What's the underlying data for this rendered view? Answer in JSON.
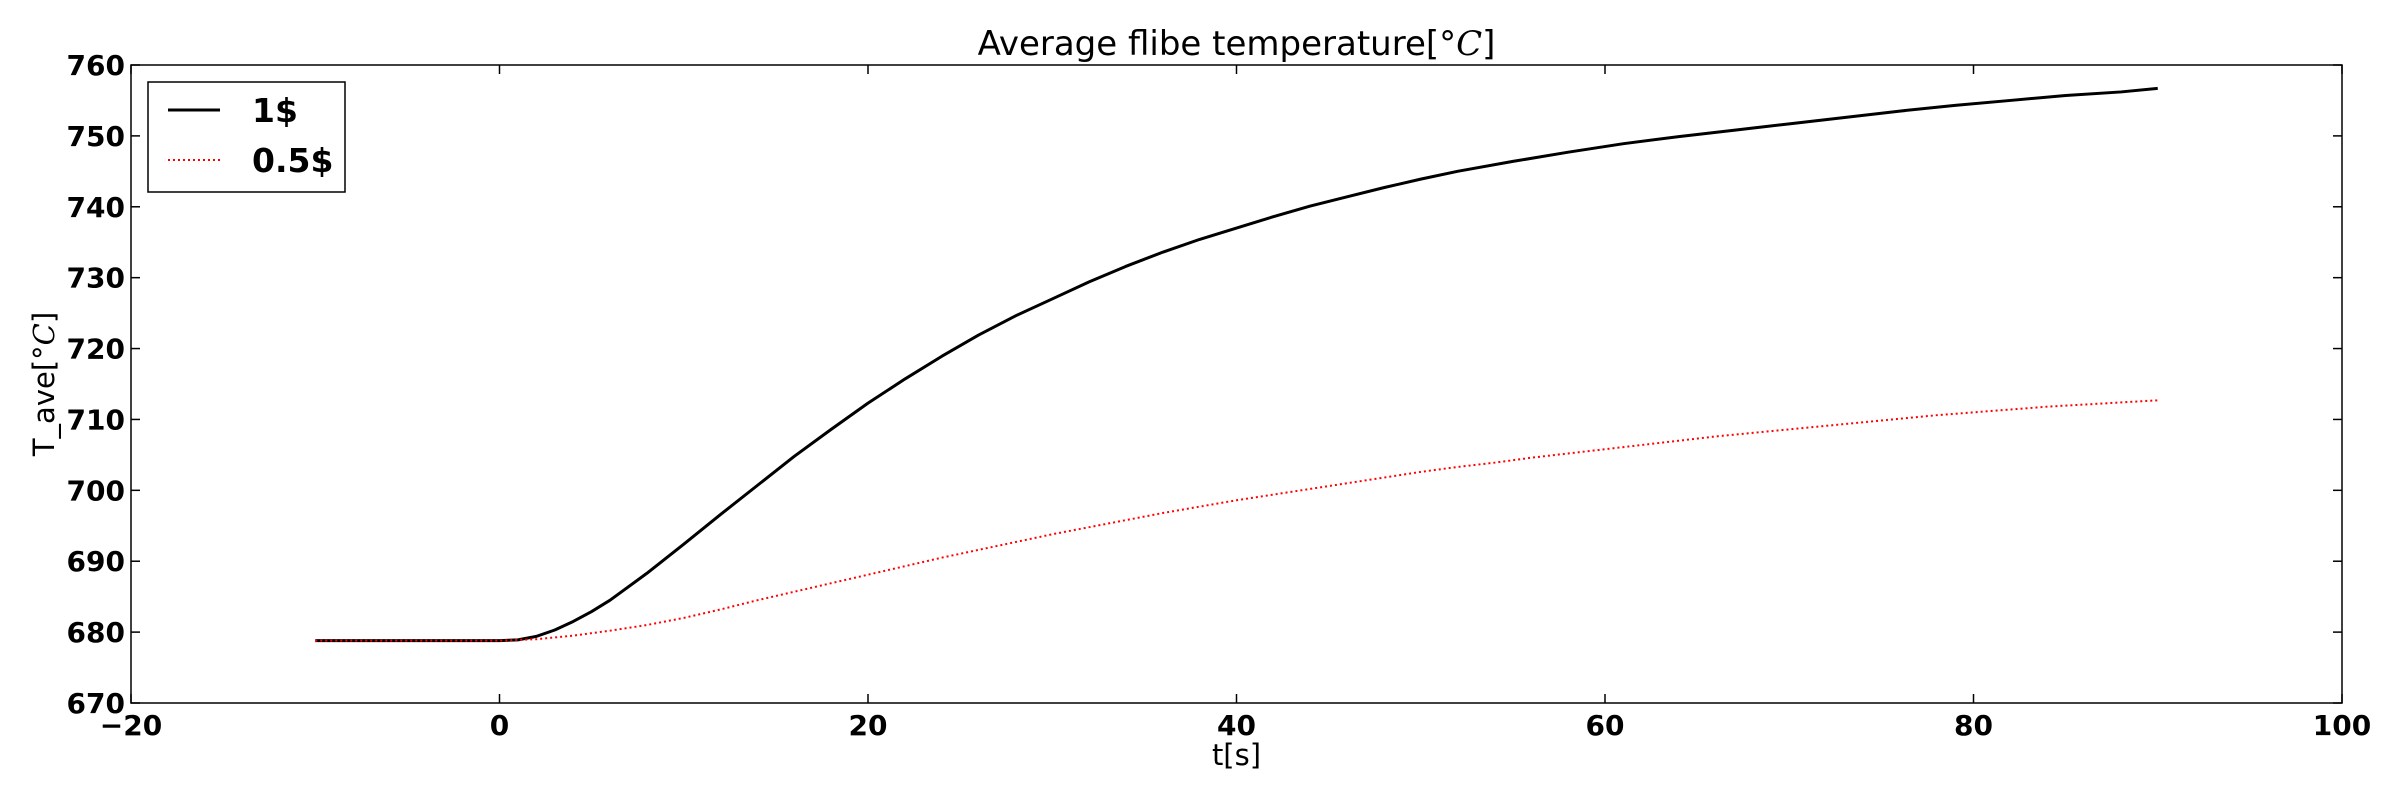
{
  "chart_data": {
    "type": "line",
    "title": "Average flibe temperature[°C]",
    "title_parts": {
      "prefix": "Average flibe temperature[",
      "degree": "°",
      "unit": "C",
      "suffix": "]"
    },
    "xlabel": "t[s]",
    "ylabel": "T_ave[°C]",
    "ylabel_parts": {
      "prefix": "T_ave[",
      "degree": "°",
      "unit": "C",
      "suffix": "]"
    },
    "xlim": [
      -20,
      100
    ],
    "ylim": [
      670,
      760
    ],
    "xticks": [
      -20,
      0,
      20,
      40,
      60,
      80,
      100
    ],
    "yticks": [
      670,
      680,
      690,
      700,
      710,
      720,
      730,
      740,
      750,
      760
    ],
    "xtick_labels": [
      "−20",
      "0",
      "20",
      "40",
      "60",
      "80",
      "100"
    ],
    "ytick_labels": [
      "670",
      "680",
      "690",
      "700",
      "710",
      "720",
      "730",
      "740",
      "750",
      "760"
    ],
    "grid": false,
    "legend_position": "top-left",
    "series": [
      {
        "name": "1$",
        "color": "#000000",
        "style": "solid",
        "x": [
          -10,
          -5,
          0,
          1,
          2,
          3,
          4,
          5,
          6,
          8,
          10,
          12,
          14,
          16,
          18,
          20,
          22,
          24,
          26,
          28,
          30,
          32,
          34,
          36,
          38,
          40,
          42,
          44,
          46,
          48,
          50,
          52,
          55,
          58,
          61,
          64,
          67,
          70,
          73,
          76,
          79,
          82,
          85,
          88,
          90
        ],
        "y": [
          678.8,
          678.8,
          678.8,
          678.9,
          679.4,
          680.3,
          681.5,
          682.9,
          684.5,
          688.3,
          692.4,
          696.6,
          700.7,
          704.8,
          708.6,
          712.3,
          715.7,
          718.9,
          721.9,
          724.6,
          727.0,
          729.4,
          731.6,
          733.6,
          735.4,
          737.0,
          738.6,
          740.1,
          741.4,
          742.7,
          743.9,
          745.0,
          746.4,
          747.7,
          748.9,
          749.9,
          750.8,
          751.7,
          752.6,
          753.5,
          754.3,
          755.0,
          755.7,
          756.2,
          756.7
        ]
      },
      {
        "name": "0.5$",
        "color": "#ff0000",
        "style": "dotted",
        "x": [
          -10,
          -5,
          0,
          2,
          4,
          6,
          8,
          10,
          12,
          14,
          16,
          18,
          20,
          22,
          24,
          26,
          28,
          30,
          32,
          34,
          36,
          38,
          40,
          42,
          44,
          46,
          48,
          50,
          52,
          54,
          56,
          58,
          60,
          62,
          64,
          66,
          68,
          70,
          72,
          74,
          76,
          78,
          80,
          82,
          84,
          86,
          88,
          90
        ],
        "y": [
          678.8,
          678.8,
          678.8,
          679.0,
          679.5,
          680.2,
          681.0,
          682.0,
          683.2,
          684.5,
          685.7,
          686.9,
          688.1,
          689.3,
          690.5,
          691.6,
          692.7,
          693.8,
          694.8,
          695.8,
          696.8,
          697.7,
          698.6,
          699.4,
          700.2,
          701.0,
          701.8,
          702.6,
          703.3,
          703.9,
          704.6,
          705.2,
          705.8,
          706.4,
          707.0,
          707.6,
          708.1,
          708.6,
          709.1,
          709.6,
          710.1,
          710.6,
          711.0,
          711.4,
          711.8,
          712.1,
          712.4,
          712.7
        ]
      }
    ]
  }
}
